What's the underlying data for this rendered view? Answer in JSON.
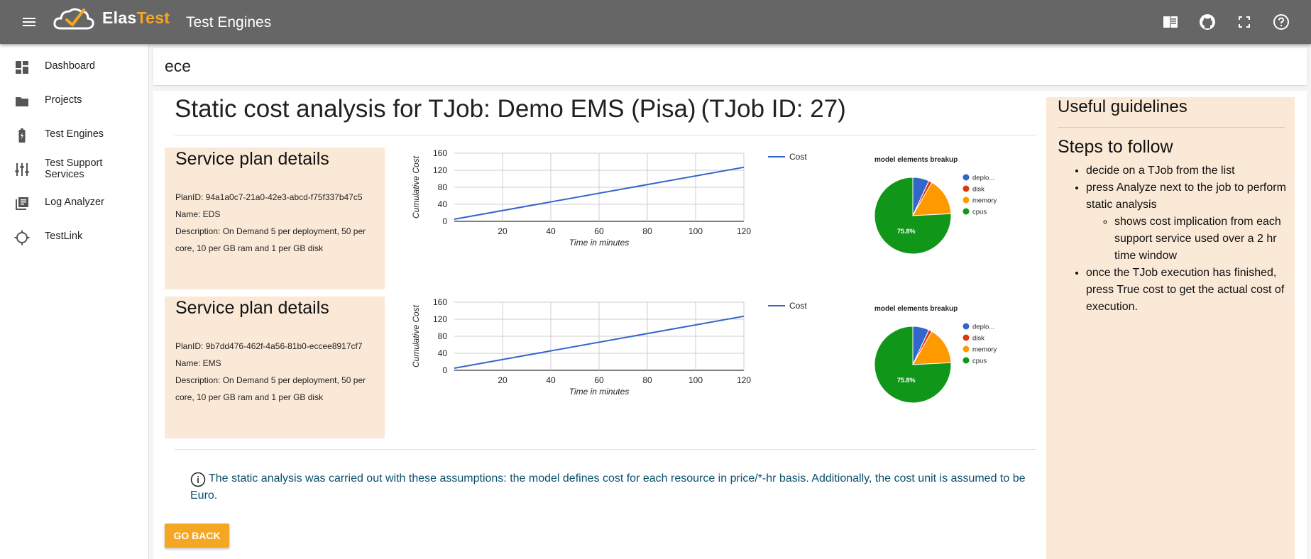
{
  "header": {
    "logo_part1": "Elas",
    "logo_part2": "Test",
    "page_title": "Test Engines",
    "icons": [
      "menu-icon",
      "elastest-logo-icon",
      "book-icon",
      "github-icon",
      "fullscreen-icon",
      "help-icon"
    ]
  },
  "sidebar": {
    "items": [
      {
        "label": "Dashboard",
        "icon": "dashboard-icon"
      },
      {
        "label": "Projects",
        "icon": "folder-icon"
      },
      {
        "label": "Test Engines",
        "icon": "battery-charging-icon"
      },
      {
        "label": "Test Support Services",
        "icon": "tune-icon"
      },
      {
        "label": "Log Analyzer",
        "icon": "library-books-icon"
      },
      {
        "label": "TestLink",
        "icon": "gps-icon"
      }
    ]
  },
  "breadcrumb": "ece",
  "main": {
    "title": "Static cost analysis for TJob: Demo EMS (Pisa) (TJob ID: 27)",
    "plans": [
      {
        "heading": "Service plan details",
        "plan_id": "PlanID: 94a1a0c7-21a0-42e3-abcd-f75f337b47c5",
        "name": "Name: EDS",
        "description": "Description: On Demand 5 per deployment, 50 per core, 10 per GB ram and 1 per GB disk"
      },
      {
        "heading": "Service plan details",
        "plan_id": "PlanID: 9b7dd476-462f-4a56-81b0-eccee8917cf7",
        "name": "Name: EMS",
        "description": "Description: On Demand 5 per deployment, 50 per core, 10 per GB ram and 1 per GB disk"
      }
    ],
    "note": "The static analysis was carried out with these assumptions: the model defines cost for each resource in price/*-hr basis. Additionally, the cost unit is assumed to be Euro.",
    "go_back": "GO BACK"
  },
  "guidelines": {
    "title": "Useful guidelines",
    "subtitle": "Steps to follow",
    "step1": "decide on a TJob from the list",
    "step2": "press Analyze next to the job to perform static analysis",
    "step2_sub": "shows cost implication from each support service used over a 2 hr time window",
    "step3": "once the TJob execution has finished, press True cost to get the actual cost of execution."
  },
  "chart_data": [
    {
      "type": "line",
      "xlabel": "Time in minutes",
      "ylabel": "Cumulative Cost",
      "xticks": [
        20,
        40,
        60,
        80,
        100,
        120
      ],
      "yticks": [
        0,
        40,
        80,
        120,
        160
      ],
      "xlim": [
        0,
        120
      ],
      "ylim": [
        0,
        160
      ],
      "series": [
        {
          "name": "Cost",
          "color": "#3366cc",
          "x": [
            0,
            120
          ],
          "y": [
            5,
            127
          ]
        }
      ]
    },
    {
      "type": "pie",
      "title": "model elements breakup",
      "slices": [
        {
          "label": "deplo...",
          "value": 6.9,
          "color": "#3366cc"
        },
        {
          "label": "disk",
          "value": 1.4,
          "color": "#dc3912"
        },
        {
          "label": "memory",
          "value": 15.9,
          "color": "#ff9900"
        },
        {
          "label": "cpus",
          "value": 75.8,
          "color": "#109618"
        }
      ],
      "slice_label": "75.8%"
    },
    {
      "type": "line",
      "xlabel": "Time in minutes",
      "ylabel": "Cumulative Cost",
      "xticks": [
        20,
        40,
        60,
        80,
        100,
        120
      ],
      "yticks": [
        0,
        40,
        80,
        120,
        160
      ],
      "xlim": [
        0,
        120
      ],
      "ylim": [
        0,
        160
      ],
      "series": [
        {
          "name": "Cost",
          "color": "#3366cc",
          "x": [
            0,
            120
          ],
          "y": [
            5,
            127
          ]
        }
      ]
    },
    {
      "type": "pie",
      "title": "model elements breakup",
      "slices": [
        {
          "label": "deplo...",
          "value": 6.9,
          "color": "#3366cc"
        },
        {
          "label": "disk",
          "value": 1.4,
          "color": "#dc3912"
        },
        {
          "label": "memory",
          "value": 15.9,
          "color": "#ff9900"
        },
        {
          "label": "cpus",
          "value": 75.8,
          "color": "#109618"
        }
      ],
      "slice_label": "75.8%"
    }
  ]
}
